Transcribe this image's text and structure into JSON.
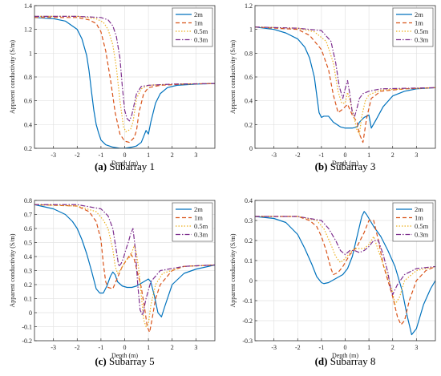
{
  "colors": {
    "grid": "#e3e3e3",
    "axis": "#333333",
    "series": [
      "#0072BD",
      "#D95319",
      "#EDB120",
      "#7E2F8E"
    ],
    "dashes": [
      "",
      "5,3",
      "1.5,2",
      "6,2,1.5,2"
    ]
  },
  "chart_data": [
    {
      "type": "line",
      "caption_letter": "(a)",
      "caption_text": " Subarray 1",
      "xlabel": "Depth (m)",
      "ylabel": "Apparent conductivity (S/m)",
      "xlim": [
        -3.8,
        3.8
      ],
      "ylim": [
        0.2,
        1.4
      ],
      "xticks": [
        -3,
        -2,
        -1,
        0,
        1,
        2,
        3
      ],
      "yticks": [
        0.2,
        0.4,
        0.6,
        0.8,
        1.0,
        1.2,
        1.4
      ],
      "ytick_labels": [
        "0.2",
        "0.4",
        "0.6",
        "0.8",
        "1",
        "1.2",
        "1.4"
      ],
      "grid": true,
      "legend_position": "top-right",
      "series": [
        {
          "name": "2m",
          "x": [
            -3.8,
            -3,
            -2.5,
            -2,
            -1.8,
            -1.6,
            -1.5,
            -1.4,
            -1.3,
            -1.2,
            -1.1,
            -1.0,
            -0.8,
            -0.5,
            -0.2,
            0,
            0.3,
            0.5,
            0.7,
            0.8,
            0.9,
            1.0,
            1.1,
            1.3,
            1.5,
            1.8,
            2.2,
            3,
            3.8
          ],
          "y": [
            1.3,
            1.29,
            1.27,
            1.2,
            1.12,
            0.98,
            0.85,
            0.68,
            0.52,
            0.4,
            0.33,
            0.27,
            0.23,
            0.21,
            0.2,
            0.2,
            0.21,
            0.22,
            0.25,
            0.3,
            0.35,
            0.32,
            0.42,
            0.58,
            0.66,
            0.71,
            0.73,
            0.74,
            0.745
          ]
        },
        {
          "name": "1m",
          "x": [
            -3.8,
            -2,
            -1.5,
            -1.2,
            -1.0,
            -0.8,
            -0.6,
            -0.4,
            -0.2,
            0,
            0.2,
            0.4,
            0.5,
            0.6,
            0.8,
            1.0,
            1.5,
            2.5,
            3.8
          ],
          "y": [
            1.3,
            1.3,
            1.28,
            1.25,
            1.18,
            1.02,
            0.78,
            0.5,
            0.32,
            0.26,
            0.25,
            0.29,
            0.35,
            0.5,
            0.66,
            0.71,
            0.73,
            0.74,
            0.745
          ]
        },
        {
          "name": "0.5m",
          "x": [
            -3.8,
            -2,
            -1.2,
            -0.9,
            -0.7,
            -0.5,
            -0.35,
            -0.2,
            -0.05,
            0.05,
            0.15,
            0.25,
            0.35,
            0.5,
            0.7,
            1.0,
            2,
            3.8
          ],
          "y": [
            1.31,
            1.31,
            1.29,
            1.26,
            1.2,
            1.07,
            0.88,
            0.6,
            0.38,
            0.34,
            0.35,
            0.36,
            0.42,
            0.62,
            0.7,
            0.73,
            0.74,
            0.745
          ]
        },
        {
          "name": "0.3m",
          "x": [
            -3.8,
            -2,
            -1.0,
            -0.7,
            -0.5,
            -0.35,
            -0.2,
            -0.1,
            0,
            0.1,
            0.2,
            0.3,
            0.4,
            0.5,
            0.7,
            1.0,
            2,
            3.8
          ],
          "y": [
            1.31,
            1.31,
            1.3,
            1.28,
            1.23,
            1.14,
            0.96,
            0.72,
            0.52,
            0.45,
            0.43,
            0.48,
            0.57,
            0.66,
            0.72,
            0.73,
            0.74,
            0.745
          ]
        }
      ]
    },
    {
      "type": "line",
      "caption_letter": "(b)",
      "caption_text": " Subarray 3",
      "xlabel": "Depth (m)",
      "ylabel": "Apparent conductivity (S/m)",
      "xlim": [
        -3.8,
        3.8
      ],
      "ylim": [
        0,
        1.2
      ],
      "xticks": [
        -3,
        -2,
        -1,
        0,
        1,
        2,
        3
      ],
      "yticks": [
        0,
        0.2,
        0.4,
        0.6,
        0.8,
        1.0,
        1.2
      ],
      "ytick_labels": [
        "0",
        "0.2",
        "0.4",
        "0.6",
        "0.8",
        "1",
        "1.2"
      ],
      "grid": true,
      "legend_position": "top-right",
      "series": [
        {
          "name": "2m",
          "x": [
            -3.8,
            -3,
            -2.5,
            -2,
            -1.7,
            -1.5,
            -1.3,
            -1.2,
            -1.1,
            -1.0,
            -0.9,
            -0.7,
            -0.5,
            -0.2,
            0,
            0.3,
            0.5,
            0.6,
            0.8,
            1.0,
            1.1,
            1.3,
            1.6,
            2,
            2.5,
            3,
            3.8
          ],
          "y": [
            1.02,
            1.0,
            0.97,
            0.92,
            0.85,
            0.76,
            0.6,
            0.45,
            0.3,
            0.26,
            0.27,
            0.27,
            0.22,
            0.18,
            0.17,
            0.17,
            0.18,
            0.22,
            0.26,
            0.28,
            0.17,
            0.24,
            0.35,
            0.44,
            0.48,
            0.5,
            0.51
          ]
        },
        {
          "name": "1m",
          "x": [
            -3.8,
            -2,
            -1.5,
            -1.0,
            -0.7,
            -0.5,
            -0.3,
            -0.1,
            0.1,
            0.3,
            0.5,
            0.6,
            0.75,
            0.9,
            1.1,
            1.5,
            2.5,
            3.8
          ],
          "y": [
            1.02,
            1.0,
            0.95,
            0.83,
            0.66,
            0.45,
            0.3,
            0.33,
            0.37,
            0.28,
            0.22,
            0.12,
            0.05,
            0.25,
            0.42,
            0.48,
            0.5,
            0.51
          ]
        },
        {
          "name": "0.5m",
          "x": [
            -3.8,
            -2,
            -1.3,
            -0.8,
            -0.5,
            -0.3,
            -0.15,
            0,
            0.1,
            0.2,
            0.35,
            0.5,
            0.6,
            0.7,
            0.85,
            1.0,
            1.5,
            2.5,
            3.8
          ],
          "y": [
            1.02,
            1.01,
            0.98,
            0.9,
            0.72,
            0.48,
            0.38,
            0.38,
            0.47,
            0.4,
            0.28,
            0.15,
            0.12,
            0.27,
            0.4,
            0.45,
            0.49,
            0.5,
            0.51
          ]
        },
        {
          "name": "0.3m",
          "x": [
            -3.8,
            -2,
            -1.0,
            -0.6,
            -0.4,
            -0.25,
            -0.1,
            0,
            0.1,
            0.2,
            0.3,
            0.4,
            0.5,
            0.6,
            0.75,
            1.0,
            1.5,
            3.8
          ],
          "y": [
            1.02,
            1.01,
            0.99,
            0.9,
            0.72,
            0.52,
            0.42,
            0.5,
            0.57,
            0.45,
            0.3,
            0.27,
            0.34,
            0.42,
            0.46,
            0.48,
            0.5,
            0.51
          ]
        }
      ]
    },
    {
      "type": "line",
      "caption_letter": "(c)",
      "caption_text": " Subarray 5",
      "xlabel": "Depth (m)",
      "ylabel": "Apparent conductivity (S/m)",
      "xlim": [
        -3.8,
        3.8
      ],
      "ylim": [
        -0.2,
        0.8
      ],
      "xticks": [
        -3,
        -2,
        -1,
        0,
        1,
        2,
        3
      ],
      "yticks": [
        -0.2,
        -0.1,
        0,
        0.1,
        0.2,
        0.3,
        0.4,
        0.5,
        0.6,
        0.7,
        0.8
      ],
      "ytick_labels": [
        "-0.2",
        "-0.1",
        "0",
        "0.1",
        "0.2",
        "0.3",
        "0.4",
        "0.5",
        "0.6",
        "0.7",
        "0.8"
      ],
      "grid": true,
      "legend_position": "top-right",
      "series": [
        {
          "name": "2m",
          "x": [
            -3.8,
            -3,
            -2.5,
            -2.2,
            -2,
            -1.8,
            -1.6,
            -1.4,
            -1.2,
            -1.05,
            -0.9,
            -0.75,
            -0.6,
            -0.5,
            -0.4,
            -0.3,
            -0.1,
            0.1,
            0.3,
            0.5,
            0.7,
            0.9,
            1.0,
            1.1,
            1.25,
            1.4,
            1.55,
            1.7,
            2,
            2.5,
            3,
            3.8
          ],
          "y": [
            0.77,
            0.74,
            0.7,
            0.65,
            0.6,
            0.52,
            0.42,
            0.3,
            0.17,
            0.14,
            0.14,
            0.19,
            0.26,
            0.29,
            0.27,
            0.22,
            0.19,
            0.18,
            0.18,
            0.19,
            0.21,
            0.23,
            0.24,
            0.22,
            0.12,
            0.0,
            -0.03,
            0.05,
            0.2,
            0.28,
            0.31,
            0.34
          ]
        },
        {
          "name": "1m",
          "x": [
            -3.8,
            -2,
            -1.5,
            -1.2,
            -1.0,
            -0.9,
            -0.8,
            -0.7,
            -0.5,
            -0.3,
            -0.1,
            0.1,
            0.25,
            0.4,
            0.55,
            0.7,
            0.85,
            0.95,
            1.05,
            1.15,
            1.3,
            1.5,
            2,
            2.5,
            3.8
          ],
          "y": [
            0.77,
            0.76,
            0.72,
            0.65,
            0.52,
            0.35,
            0.22,
            0.18,
            0.17,
            0.25,
            0.33,
            0.38,
            0.42,
            0.38,
            0.28,
            0.18,
            0.02,
            -0.1,
            -0.14,
            -0.05,
            0.1,
            0.2,
            0.3,
            0.33,
            0.34
          ]
        },
        {
          "name": "0.5m",
          "x": [
            -3.8,
            -2,
            -1.2,
            -0.9,
            -0.7,
            -0.5,
            -0.4,
            -0.3,
            -0.15,
            0,
            0.1,
            0.25,
            0.4,
            0.5,
            0.6,
            0.7,
            0.8,
            0.9,
            1.0,
            1.1,
            1.3,
            1.6,
            2.5,
            3.8
          ],
          "y": [
            0.77,
            0.76,
            0.72,
            0.66,
            0.6,
            0.45,
            0.33,
            0.28,
            0.31,
            0.36,
            0.38,
            0.4,
            0.48,
            0.42,
            0.3,
            0.12,
            -0.05,
            -0.1,
            -0.08,
            0.05,
            0.2,
            0.28,
            0.33,
            0.34
          ]
        },
        {
          "name": "0.3m",
          "x": [
            -3.8,
            -2,
            -1.0,
            -0.7,
            -0.5,
            -0.35,
            -0.25,
            -0.15,
            -0.05,
            0.05,
            0.15,
            0.25,
            0.35,
            0.45,
            0.55,
            0.65,
            0.75,
            0.9,
            1.1,
            1.5,
            2.5,
            3.8
          ],
          "y": [
            0.77,
            0.77,
            0.74,
            0.69,
            0.6,
            0.44,
            0.33,
            0.35,
            0.39,
            0.45,
            0.5,
            0.56,
            0.6,
            0.45,
            0.2,
            0.02,
            -0.02,
            0.1,
            0.22,
            0.3,
            0.33,
            0.34
          ]
        }
      ]
    },
    {
      "type": "line",
      "caption_letter": "(d)",
      "caption_text": " Subarray 8",
      "xlabel": "Depth (m)",
      "ylabel": "Apparent conductivity (S/m)",
      "xlim": [
        -3.8,
        3.8
      ],
      "ylim": [
        -0.3,
        0.4
      ],
      "xticks": [
        -3,
        -2,
        -1,
        0,
        1,
        2,
        3
      ],
      "yticks": [
        -0.3,
        -0.2,
        -0.1,
        0,
        0.1,
        0.2,
        0.3,
        0.4
      ],
      "ytick_labels": [
        "-0.3",
        "-0.2",
        "-0.1",
        "0",
        "0.1",
        "0.2",
        "0.3",
        "0.4"
      ],
      "grid": true,
      "legend_position": "top-right",
      "series": [
        {
          "name": "2m",
          "x": [
            -3.8,
            -3,
            -2.5,
            -2,
            -1.7,
            -1.4,
            -1.2,
            -1.0,
            -0.9,
            -0.7,
            -0.4,
            -0.1,
            0.1,
            0.3,
            0.5,
            0.7,
            0.8,
            0.9,
            1.0,
            1.2,
            1.5,
            1.8,
            2.1,
            2.4,
            2.6,
            2.8,
            3.0,
            3.3,
            3.6,
            3.8
          ],
          "y": [
            0.32,
            0.31,
            0.29,
            0.23,
            0.16,
            0.08,
            0.02,
            -0.01,
            -0.015,
            -0.01,
            0.01,
            0.03,
            0.06,
            0.12,
            0.22,
            0.32,
            0.345,
            0.33,
            0.31,
            0.27,
            0.22,
            0.15,
            0.07,
            -0.05,
            -0.17,
            -0.27,
            -0.24,
            -0.12,
            -0.04,
            0.0
          ]
        },
        {
          "name": "1m",
          "x": [
            -3.8,
            -2,
            -1.5,
            -1.2,
            -1.0,
            -0.8,
            -0.6,
            -0.5,
            -0.3,
            -0.1,
            0.2,
            0.5,
            0.8,
            1.0,
            1.2,
            1.4,
            1.6,
            1.8,
            2.0,
            2.2,
            2.35,
            2.5,
            2.7,
            3,
            3.4,
            3.8
          ],
          "y": [
            0.32,
            0.32,
            0.3,
            0.27,
            0.22,
            0.15,
            0.06,
            0.03,
            0.04,
            0.07,
            0.13,
            0.17,
            0.24,
            0.3,
            0.3,
            0.2,
            0.08,
            0.0,
            -0.08,
            -0.18,
            -0.22,
            -0.2,
            -0.1,
            0.0,
            0.05,
            0.07
          ]
        },
        {
          "name": "0.5m",
          "x": [
            -3.8,
            -2,
            -1.2,
            -0.9,
            -0.6,
            -0.4,
            -0.2,
            0,
            0.2,
            0.4,
            0.6,
            0.8,
            1.0,
            1.2,
            1.4,
            1.6,
            1.8,
            2.0,
            2.1,
            2.3,
            2.5,
            3,
            3.8
          ],
          "y": [
            0.32,
            0.32,
            0.3,
            0.26,
            0.18,
            0.12,
            0.09,
            0.11,
            0.14,
            0.16,
            0.16,
            0.16,
            0.18,
            0.22,
            0.15,
            0.08,
            0.02,
            -0.06,
            -0.12,
            -0.08,
            0.0,
            0.05,
            0.07
          ]
        },
        {
          "name": "0.3m",
          "x": [
            -3.8,
            -2,
            -1.0,
            -0.7,
            -0.4,
            -0.2,
            0,
            0.2,
            0.4,
            0.6,
            0.8,
            1.0,
            1.2,
            1.4,
            1.6,
            1.8,
            1.9,
            2.0,
            2.2,
            2.5,
            3,
            3.8
          ],
          "y": [
            0.32,
            0.32,
            0.3,
            0.26,
            0.2,
            0.15,
            0.13,
            0.15,
            0.15,
            0.14,
            0.15,
            0.17,
            0.2,
            0.2,
            0.13,
            0.04,
            -0.03,
            -0.07,
            -0.02,
            0.03,
            0.06,
            0.07
          ]
        }
      ]
    }
  ]
}
